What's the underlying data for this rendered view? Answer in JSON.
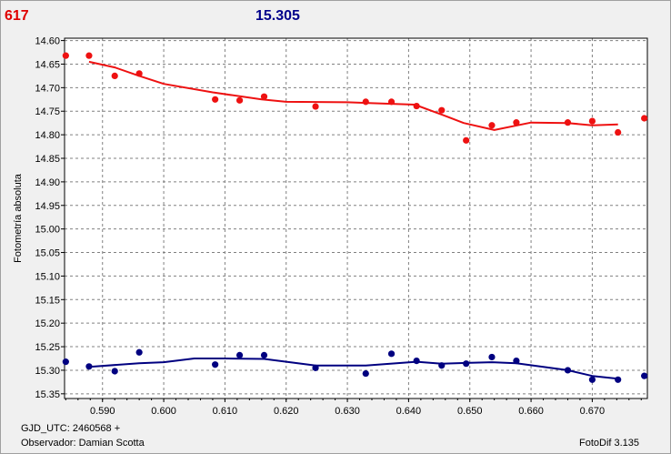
{
  "header": {
    "object_label": "617",
    "reference_magnitude": "15.305"
  },
  "footer": {
    "gjd": "GJD_UTC: 2460568 +",
    "observer": "Observador: Damian Scotta",
    "software": "FotoDif 3.135"
  },
  "colors": {
    "series_red": "#ee1111",
    "series_blue": "#000080",
    "header_red": "#e00000",
    "header_blue": "#00008b",
    "grid": "#808080"
  },
  "chart_data": {
    "type": "scatter",
    "ylabel": "Fotometría absoluta",
    "xlabel": "",
    "xlim": [
      0.5838,
      0.679
    ],
    "ylim": [
      15.36,
      14.595
    ],
    "y_inverted": true,
    "grid": true,
    "x_ticks": [
      "0.590",
      "0.600",
      "0.610",
      "0.620",
      "0.630",
      "0.640",
      "0.650",
      "0.660",
      "0.670"
    ],
    "y_ticks": [
      "14.60",
      "14.65",
      "14.70",
      "14.75",
      "14.80",
      "14.85",
      "14.90",
      "14.95",
      "15.00",
      "15.05",
      "15.10",
      "15.15",
      "15.20",
      "15.25",
      "15.30",
      "15.35"
    ],
    "series": [
      {
        "color": "#ee1111",
        "points": [
          [
            0.584,
            14.632
          ],
          [
            0.5878,
            14.632
          ],
          [
            0.592,
            14.675
          ],
          [
            0.596,
            14.67
          ],
          [
            0.6084,
            14.725
          ],
          [
            0.6124,
            14.727
          ],
          [
            0.6164,
            14.719
          ],
          [
            0.6248,
            14.74
          ],
          [
            0.633,
            14.73
          ],
          [
            0.6372,
            14.73
          ],
          [
            0.6413,
            14.739
          ],
          [
            0.6454,
            14.748
          ],
          [
            0.6494,
            14.812
          ],
          [
            0.6536,
            14.78
          ],
          [
            0.6576,
            14.774
          ],
          [
            0.666,
            14.774
          ],
          [
            0.67,
            14.771
          ],
          [
            0.6742,
            14.795
          ],
          [
            0.6785,
            14.765
          ]
        ],
        "trend": [
          [
            0.5878,
            14.645
          ],
          [
            0.592,
            14.657
          ],
          [
            0.596,
            14.675
          ],
          [
            0.6,
            14.692
          ],
          [
            0.608,
            14.71
          ],
          [
            0.616,
            14.725
          ],
          [
            0.62,
            14.73
          ],
          [
            0.63,
            14.731
          ],
          [
            0.634,
            14.733
          ],
          [
            0.641,
            14.736
          ],
          [
            0.646,
            14.76
          ],
          [
            0.649,
            14.775
          ],
          [
            0.654,
            14.79
          ],
          [
            0.66,
            14.774
          ],
          [
            0.666,
            14.775
          ],
          [
            0.67,
            14.78
          ],
          [
            0.6742,
            14.778
          ]
        ]
      },
      {
        "color": "#000080",
        "points": [
          [
            0.584,
            15.282
          ],
          [
            0.5878,
            15.292
          ],
          [
            0.592,
            15.302
          ],
          [
            0.596,
            15.262
          ],
          [
            0.6084,
            15.288
          ],
          [
            0.6124,
            15.268
          ],
          [
            0.6164,
            15.268
          ],
          [
            0.6248,
            15.295
          ],
          [
            0.633,
            15.307
          ],
          [
            0.6372,
            15.265
          ],
          [
            0.6413,
            15.28
          ],
          [
            0.6454,
            15.29
          ],
          [
            0.6494,
            15.286
          ],
          [
            0.6536,
            15.272
          ],
          [
            0.6576,
            15.28
          ],
          [
            0.666,
            15.3
          ],
          [
            0.67,
            15.32
          ],
          [
            0.6742,
            15.32
          ],
          [
            0.6785,
            15.312
          ]
        ],
        "trend": [
          [
            0.5878,
            15.293
          ],
          [
            0.596,
            15.285
          ],
          [
            0.6,
            15.283
          ],
          [
            0.605,
            15.275
          ],
          [
            0.61,
            15.275
          ],
          [
            0.6164,
            15.276
          ],
          [
            0.6248,
            15.29
          ],
          [
            0.633,
            15.29
          ],
          [
            0.6413,
            15.282
          ],
          [
            0.6454,
            15.286
          ],
          [
            0.6536,
            15.283
          ],
          [
            0.6576,
            15.285
          ],
          [
            0.666,
            15.3
          ],
          [
            0.67,
            15.312
          ],
          [
            0.6742,
            15.318
          ]
        ]
      }
    ]
  }
}
